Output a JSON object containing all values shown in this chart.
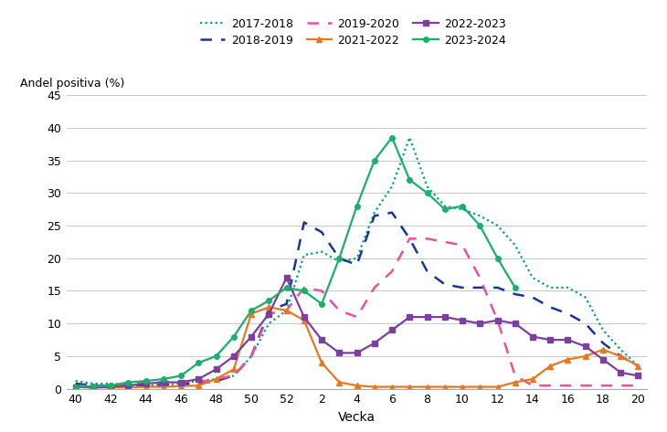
{
  "ylabel": "Andel positiva (%)",
  "xlabel": "Vecka",
  "ylim": [
    0,
    45
  ],
  "yticks": [
    0,
    5,
    10,
    15,
    20,
    25,
    30,
    35,
    40,
    45
  ],
  "x_tick_labels": [
    "40",
    "42",
    "44",
    "46",
    "48",
    "50",
    "52",
    "2",
    "4",
    "6",
    "8",
    "10",
    "12",
    "14",
    "16",
    "18",
    "20"
  ],
  "series": [
    {
      "label": "2017-2018",
      "color": "#00A08A",
      "linestyle": "dotted",
      "marker": null,
      "linewidth": 1.6,
      "x": [
        40,
        41,
        42,
        43,
        44,
        45,
        46,
        47,
        48,
        49,
        50,
        51,
        52,
        53,
        54,
        55,
        56,
        57,
        58,
        59,
        60,
        61,
        62,
        63,
        64,
        65,
        66,
        67,
        68,
        69,
        70,
        71,
        72
      ],
      "y": [
        1.2,
        0.8,
        0.8,
        0.6,
        0.5,
        0.6,
        0.8,
        1.2,
        1.5,
        2.0,
        5.0,
        10.0,
        12.0,
        20.5,
        21.0,
        19.5,
        20.0,
        27.0,
        31.0,
        38.5,
        31.0,
        28.0,
        27.5,
        26.5,
        25.0,
        22.0,
        17.0,
        15.5,
        15.5,
        14.0,
        9.0,
        6.0,
        3.5
      ]
    },
    {
      "label": "2018-2019",
      "color": "#1A3590",
      "linestyle": "dashed",
      "marker": null,
      "linewidth": 1.8,
      "x": [
        40,
        41,
        42,
        43,
        44,
        45,
        46,
        47,
        48,
        49,
        50,
        51,
        52,
        53,
        54,
        55,
        56,
        57,
        58,
        59,
        60,
        61,
        62,
        63,
        64,
        65,
        66,
        67,
        68,
        69,
        70,
        71,
        72
      ],
      "y": [
        0.8,
        0.5,
        0.5,
        0.5,
        0.5,
        0.6,
        0.7,
        0.8,
        1.2,
        2.0,
        5.0,
        12.0,
        13.0,
        25.5,
        24.0,
        20.0,
        19.0,
        26.5,
        27.0,
        23.0,
        18.0,
        16.0,
        15.5,
        15.5,
        15.5,
        14.5,
        14.0,
        12.5,
        11.5,
        10.0,
        7.0,
        5.0,
        3.5
      ]
    },
    {
      "label": "2019-2020",
      "color": "#E8529A",
      "linestyle": "dashed",
      "marker": null,
      "linewidth": 1.8,
      "x": [
        40,
        41,
        42,
        43,
        44,
        45,
        46,
        47,
        48,
        49,
        50,
        51,
        52,
        53,
        54,
        55,
        56,
        57,
        58,
        59,
        60,
        61,
        62,
        63,
        64,
        65,
        66,
        67,
        68,
        69,
        70,
        71,
        72
      ],
      "y": [
        0.5,
        0.4,
        0.5,
        0.8,
        1.0,
        1.0,
        1.2,
        1.0,
        1.5,
        2.0,
        5.0,
        11.5,
        12.0,
        15.5,
        15.0,
        12.0,
        11.0,
        15.5,
        18.0,
        23.0,
        23.0,
        22.5,
        22.0,
        17.0,
        10.5,
        2.0,
        0.5,
        0.5,
        0.5,
        0.5,
        0.5,
        0.5,
        0.5
      ]
    },
    {
      "label": "2021-2022",
      "color": "#E87820",
      "linestyle": "solid",
      "marker": "^",
      "markersize": 4,
      "linewidth": 1.6,
      "x": [
        40,
        41,
        42,
        43,
        44,
        45,
        46,
        47,
        48,
        49,
        50,
        51,
        52,
        53,
        54,
        55,
        56,
        57,
        58,
        59,
        60,
        61,
        62,
        63,
        64,
        65,
        66,
        67,
        68,
        69,
        70,
        71,
        72
      ],
      "y": [
        0.3,
        0.2,
        0.2,
        0.2,
        0.3,
        0.3,
        0.4,
        0.5,
        1.5,
        3.0,
        11.5,
        12.5,
        12.0,
        10.5,
        4.0,
        1.0,
        0.5,
        0.3,
        0.3,
        0.3,
        0.3,
        0.3,
        0.3,
        0.3,
        0.3,
        1.0,
        1.5,
        3.5,
        4.5,
        5.0,
        6.0,
        5.0,
        3.5
      ]
    },
    {
      "label": "2022-2023",
      "color": "#7B3FA0",
      "linestyle": "solid",
      "marker": "s",
      "markersize": 4,
      "linewidth": 1.6,
      "x": [
        40,
        41,
        42,
        43,
        44,
        45,
        46,
        47,
        48,
        49,
        50,
        51,
        52,
        53,
        54,
        55,
        56,
        57,
        58,
        59,
        60,
        61,
        62,
        63,
        64,
        65,
        66,
        67,
        68,
        69,
        70,
        71,
        72
      ],
      "y": [
        0.3,
        0.2,
        0.3,
        0.5,
        0.8,
        1.0,
        1.0,
        1.5,
        3.0,
        5.0,
        8.0,
        11.5,
        17.0,
        11.0,
        7.5,
        5.5,
        5.5,
        7.0,
        9.0,
        11.0,
        11.0,
        11.0,
        10.5,
        10.0,
        10.5,
        10.0,
        8.0,
        7.5,
        7.5,
        6.5,
        4.5,
        2.5,
        2.0
      ]
    },
    {
      "label": "2023-2024",
      "color": "#1AAF6A",
      "linestyle": "solid",
      "marker": "o",
      "markersize": 4,
      "linewidth": 1.6,
      "x": [
        40,
        41,
        42,
        43,
        44,
        45,
        46,
        47,
        48,
        49,
        50,
        51,
        52,
        53,
        54,
        55,
        56,
        57,
        58,
        59,
        60,
        61,
        62,
        63,
        64,
        65
      ],
      "y": [
        0.3,
        0.4,
        0.5,
        1.0,
        1.2,
        1.5,
        2.0,
        4.0,
        5.0,
        8.0,
        12.0,
        13.5,
        15.5,
        15.0,
        13.0,
        20.0,
        28.0,
        35.0,
        38.5,
        32.0,
        30.0,
        27.5,
        28.0,
        25.0,
        20.0,
        15.5
      ]
    }
  ],
  "figsize": [
    7.3,
    4.73
  ],
  "dpi": 100
}
